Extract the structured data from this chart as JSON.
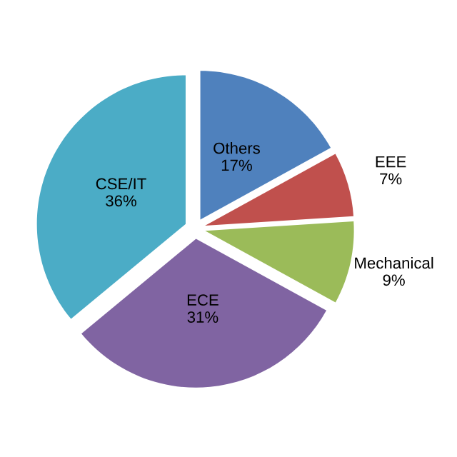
{
  "chart_data": {
    "type": "pie",
    "categories": [
      "Others",
      "EEE",
      "Mechanical",
      "ECE",
      "CSE/IT"
    ],
    "values": [
      17,
      7,
      9,
      31,
      36
    ],
    "colors": [
      "#4f81bd",
      "#c0504d",
      "#9bbb59",
      "#8064a2",
      "#4bacc6"
    ],
    "value_labels": [
      "17%",
      "7%",
      "9%",
      "31%",
      "36%"
    ]
  }
}
